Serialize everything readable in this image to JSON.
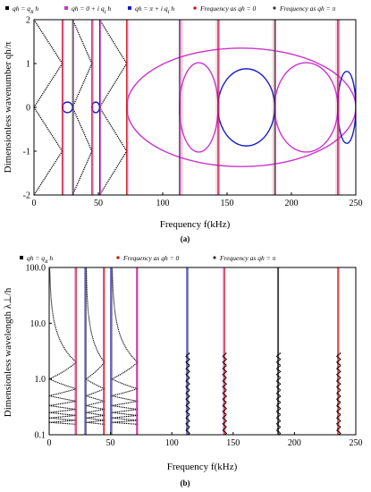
{
  "chart_data": [
    {
      "type": "line",
      "panel_label": "(a)",
      "xlabel": "Frequency  f(kHz)",
      "ylabel": "Dimensionless wavenumber  qh/π",
      "xlim": [
        0,
        250
      ],
      "ylim": [
        -2,
        2
      ],
      "x_ticks": [
        0,
        50,
        100,
        150,
        200,
        250
      ],
      "y_ticks": [
        2,
        1,
        0,
        -1,
        -2
      ],
      "legend": [
        {
          "label": "qh = q_R h",
          "color": "#000000",
          "marker": "square"
        },
        {
          "label": "qh = 0 + i q_I h",
          "color": "#cc33cc",
          "marker": "square"
        },
        {
          "label": "qh = π + i q_I h",
          "color": "#1a1acc",
          "marker": "square"
        },
        {
          "label": "Frequency as qh = 0",
          "color": "#cc0000",
          "marker": "dot"
        },
        {
          "label": "Frequency as qh = π",
          "color": "#333333",
          "marker": "dot"
        }
      ],
      "legend_position": "top",
      "colors": {
        "real_branch": "#000000",
        "imag_branch_zero": "#cc33cc",
        "imag_branch_pi": "#1a1acc",
        "freq_qh0": "#cc0000",
        "freq_qhpi": "#333333",
        "band_shade": "#f6d5d5"
      },
      "band_edges_khz": [
        22,
        30,
        45,
        51,
        72,
        113,
        143,
        187,
        236
      ],
      "bands": [
        {
          "f1": 0,
          "f2": 22,
          "m": 1
        },
        {
          "f1": 30,
          "f2": 45,
          "m": 1
        },
        {
          "f1": 51,
          "f2": 72,
          "m": 1
        }
      ],
      "imag_loops_zero": [
        {
          "f1": 72,
          "f2": 250,
          "amp": 1.35
        },
        {
          "f1": 113,
          "f2": 143,
          "amp": 1.02
        },
        {
          "f1": 187,
          "f2": 236,
          "amp": 1.02
        }
      ],
      "imag_loops_pi": [
        {
          "f1": 22,
          "f2": 30,
          "amp": 0.12
        },
        {
          "f1": 45,
          "f2": 51,
          "amp": 0.12
        },
        {
          "f1": 143,
          "f2": 187,
          "amp": 0.88
        },
        {
          "f1": 236,
          "f2": 250,
          "amp": 0.82
        }
      ],
      "shaded_regions": [
        {
          "f1": 113,
          "f2": 116
        },
        {
          "f1": 141,
          "f2": 144
        },
        {
          "f1": 185,
          "f2": 188
        },
        {
          "f1": 234,
          "f2": 238
        }
      ],
      "grid": false
    },
    {
      "type": "line",
      "panel_label": "(b)",
      "xlabel": "Frequency  f(kHz)",
      "ylabel": "Dimensionless wavelength  λ⊥/h",
      "yscale": "log",
      "xlim": [
        0,
        250
      ],
      "ylim": [
        0.1,
        100
      ],
      "x_ticks": [
        0,
        50,
        100,
        150,
        200,
        250
      ],
      "y_ticks": [
        "100.0",
        "10.0",
        "1.0",
        "0.1"
      ],
      "y_tick_values": [
        100,
        10,
        1,
        0.1
      ],
      "legend": [
        {
          "label": "qh = q_R h",
          "color": "#000000",
          "marker": "square"
        },
        {
          "label": "Frequency as qh = 0",
          "color": "#cc0000",
          "marker": "dot"
        },
        {
          "label": "Frequency as qh = π",
          "color": "#333333",
          "marker": "dot"
        }
      ],
      "legend_position": "top",
      "colors": {
        "real_branch": "#000000",
        "freq_qh0": "#cc0000",
        "freq_qhpi": "#333333",
        "imag_zero_edge": "#cc33cc",
        "imag_pi_edge": "#1a1acc"
      },
      "band_edges_khz": [
        22,
        30,
        45,
        51,
        72,
        113,
        143,
        187,
        236
      ],
      "bands": [
        {
          "f1": 0,
          "f2": 22
        },
        {
          "f1": 30,
          "f2": 45
        },
        {
          "f1": 51,
          "f2": 72
        }
      ],
      "lambda_max": 100,
      "lambda_min": 0.1,
      "grid": false
    }
  ]
}
